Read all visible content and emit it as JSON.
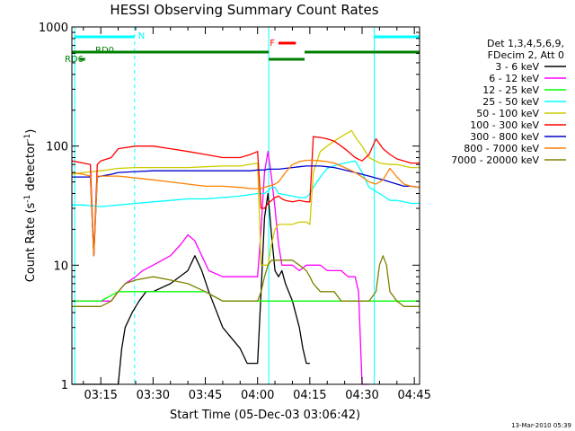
{
  "chart_data": {
    "type": "line",
    "title": "HESSI Observing Summary Count Rates",
    "xlabel": "Start Time (05-Dec-03 03:06:42)",
    "ylabel": "Count Rate (s⁻¹ detector⁻¹)",
    "ylabel_parts": {
      "main": "Count Rate (s",
      "sup1": "-1",
      "mid": " detector",
      "sup2": "-1",
      "end": ")"
    },
    "x_units": "minutes after 03:00 UT",
    "xlim": [
      6.7,
      106.5
    ],
    "ylim": [
      1,
      1000
    ],
    "yscale": "log",
    "x_ticks": [
      {
        "x": 15,
        "label": "03:15"
      },
      {
        "x": 30,
        "label": "03:30"
      },
      {
        "x": 45,
        "label": "03:45"
      },
      {
        "x": 60,
        "label": "04:00"
      },
      {
        "x": 75,
        "label": "04:15"
      },
      {
        "x": 90,
        "label": "04:30"
      },
      {
        "x": 105,
        "label": "04:45"
      }
    ],
    "y_ticks": [
      {
        "y": 1,
        "label": "1"
      },
      {
        "y": 10,
        "label": "10"
      },
      {
        "y": 100,
        "label": "100"
      },
      {
        "y": 1000,
        "label": "1000"
      }
    ],
    "legend": {
      "placement": "right",
      "header_lines": [
        "Det 1,3,4,5,6,9,",
        "FDecim 2, Att 0"
      ]
    },
    "series": [
      {
        "name": "3 - 6 keV",
        "color": "#000000",
        "x": [
          6.7,
          20,
          21,
          22,
          24,
          26,
          28,
          30,
          35,
          40,
          42,
          44,
          46,
          50,
          55,
          57,
          60,
          61,
          62,
          63,
          64,
          65,
          66,
          67,
          68,
          70,
          72,
          73,
          74,
          75
        ],
        "y": [
          1,
          1,
          2,
          3,
          4,
          5,
          6,
          6,
          7,
          9,
          12,
          9,
          6,
          3,
          2,
          1.5,
          1.5,
          6,
          25,
          40,
          18,
          9,
          8,
          9,
          7,
          5,
          3,
          2,
          1.5,
          1.5
        ]
      },
      {
        "name": "6 - 12 keV",
        "color": "#ff00ff",
        "x": [
          6.7,
          18,
          20,
          22,
          25,
          27,
          30,
          35,
          38,
          40,
          42,
          44,
          46,
          50,
          55,
          58,
          60,
          61,
          62,
          63,
          64,
          65,
          66,
          67,
          68,
          70,
          72,
          74,
          75,
          78,
          80,
          82,
          84,
          86,
          88,
          89,
          90,
          91,
          92
        ],
        "y": [
          5,
          5,
          6,
          7,
          8,
          9,
          10,
          12,
          15,
          18,
          16,
          12,
          9,
          8,
          8,
          8,
          8,
          20,
          60,
          90,
          55,
          30,
          15,
          10,
          10,
          10,
          9,
          10,
          10,
          10,
          9,
          9,
          9,
          8,
          8,
          6,
          1,
          1,
          1
        ]
      },
      {
        "name": "12 - 25 keV",
        "color": "#00ff00",
        "x": [
          6.7,
          15,
          20,
          25,
          30,
          35,
          40,
          45,
          50,
          55,
          60,
          61,
          62,
          63,
          64,
          65,
          66,
          68,
          70,
          72,
          74,
          75,
          76,
          80,
          85,
          90,
          95,
          100,
          106.5
        ],
        "y": [
          5,
          5,
          6,
          6,
          6,
          6,
          6,
          6,
          5,
          5,
          5,
          5,
          5,
          5,
          5,
          5,
          5,
          5,
          5,
          5,
          5,
          5,
          5,
          5,
          5,
          5,
          5,
          5,
          5
        ]
      },
      {
        "name": "25 - 50 keV",
        "color": "#00ffff",
        "x": [
          6.7,
          10,
          15,
          20,
          25,
          30,
          35,
          40,
          45,
          50,
          55,
          60,
          61,
          62,
          63,
          64,
          65,
          66,
          70,
          72,
          74,
          75,
          76,
          78,
          80,
          83,
          85,
          88,
          90,
          92,
          95,
          98,
          100,
          102,
          104,
          106.5
        ],
        "y": [
          32,
          32,
          31,
          32,
          33,
          34,
          35,
          36,
          36,
          37,
          38,
          40,
          40,
          40,
          42,
          45,
          45,
          40,
          38,
          37,
          37,
          40,
          45,
          55,
          65,
          70,
          72,
          75,
          60,
          45,
          40,
          35,
          35,
          34,
          33,
          33
        ]
      },
      {
        "name": "50 - 100 keV",
        "color": "#cccc00",
        "x": [
          6.7,
          10,
          15,
          20,
          25,
          30,
          35,
          40,
          45,
          50,
          55,
          60,
          61,
          62,
          63,
          64,
          65,
          66,
          67,
          68,
          70,
          72,
          74,
          75,
          76,
          78,
          80,
          82,
          84,
          86,
          87,
          88,
          90,
          92,
          95,
          98,
          100,
          102,
          104,
          106.5
        ],
        "y": [
          58,
          60,
          62,
          65,
          66,
          66,
          66,
          66,
          67,
          68,
          68,
          72,
          10,
          10,
          10,
          15,
          20,
          22,
          22,
          22,
          22,
          23,
          23,
          22,
          60,
          90,
          100,
          110,
          120,
          130,
          135,
          120,
          100,
          80,
          72,
          70,
          70,
          68,
          66,
          66
        ]
      },
      {
        "name": "100 - 300 keV",
        "color": "#ff0000",
        "x": [
          6.7,
          10,
          12,
          13,
          14,
          15,
          18,
          20,
          25,
          30,
          35,
          40,
          45,
          50,
          55,
          58,
          60,
          61,
          62,
          63,
          64,
          65,
          66,
          67,
          68,
          70,
          72,
          74,
          75,
          76,
          78,
          80,
          82,
          84,
          86,
          88,
          90,
          92,
          94,
          96,
          98,
          100,
          102,
          104,
          106.5
        ],
        "y": [
          75,
          72,
          70,
          12,
          70,
          75,
          80,
          95,
          100,
          100,
          95,
          90,
          85,
          80,
          80,
          85,
          90,
          30,
          30,
          33,
          35,
          37,
          38,
          36,
          35,
          34,
          35,
          34,
          34,
          120,
          118,
          115,
          110,
          100,
          90,
          80,
          75,
          85,
          115,
          95,
          85,
          78,
          75,
          72,
          72
        ]
      },
      {
        "name": "300 - 800 keV",
        "color": "#0000cc",
        "x": [
          6.7,
          10,
          12,
          13,
          14,
          15,
          18,
          20,
          25,
          30,
          35,
          40,
          45,
          50,
          55,
          58,
          60,
          61,
          62,
          63,
          64,
          65,
          66,
          68,
          70,
          72,
          74,
          75,
          76,
          78,
          80,
          82,
          84,
          86,
          88,
          90,
          92,
          94,
          96,
          98,
          100,
          102,
          104,
          106.5
        ],
        "y": [
          55,
          55,
          55,
          12,
          55,
          56,
          58,
          60,
          61,
          62,
          62,
          62,
          62,
          62,
          62,
          62,
          63,
          63,
          63,
          64,
          64,
          64,
          64,
          65,
          66,
          67,
          68,
          68,
          68,
          68,
          67,
          66,
          64,
          62,
          60,
          58,
          56,
          54,
          52,
          50,
          48,
          46,
          46,
          45
        ]
      },
      {
        "name": "800 - 7000 keV",
        "color": "#ff8000",
        "x": [
          6.7,
          10,
          12,
          13,
          14,
          15,
          18,
          20,
          25,
          30,
          35,
          40,
          45,
          50,
          55,
          58,
          60,
          61,
          62,
          63,
          64,
          65,
          66,
          68,
          70,
          72,
          74,
          75,
          76,
          78,
          80,
          82,
          84,
          86,
          88,
          90,
          92,
          94,
          96,
          98,
          100,
          102,
          104,
          106.5
        ],
        "y": [
          60,
          58,
          56,
          12,
          56,
          56,
          56,
          56,
          54,
          52,
          50,
          48,
          46,
          46,
          45,
          44,
          44,
          44,
          45,
          46,
          47,
          48,
          50,
          60,
          70,
          74,
          76,
          76,
          76,
          75,
          74,
          72,
          68,
          64,
          60,
          55,
          50,
          48,
          52,
          65,
          55,
          48,
          46,
          45
        ]
      },
      {
        "name": "7000 - 20000 keV",
        "color": "#808000",
        "x": [
          6.7,
          10,
          15,
          18,
          20,
          22,
          25,
          30,
          35,
          40,
          45,
          50,
          55,
          58,
          60,
          61,
          62,
          63,
          64,
          65,
          66,
          68,
          70,
          72,
          74,
          75,
          76,
          78,
          80,
          82,
          84,
          86,
          88,
          90,
          92,
          94,
          95,
          96,
          97,
          98,
          100,
          102,
          104,
          106.5
        ],
        "y": [
          4.5,
          4.5,
          4.5,
          5,
          6,
          7,
          7.5,
          8,
          7.5,
          7,
          6,
          5,
          5,
          5,
          5,
          6,
          8,
          10,
          11,
          11,
          11,
          11,
          11,
          10,
          9,
          8,
          7,
          6,
          6,
          6,
          5,
          5,
          5,
          5,
          5,
          6,
          10,
          12,
          10,
          6,
          5,
          4.5,
          4.5,
          4.5
        ]
      }
    ],
    "annotations": [
      {
        "label": "N",
        "color": "#00ffff",
        "x_start": 7.5,
        "x_end": 106.5,
        "segments": [
          [
            7.5,
            24.7
          ],
          [
            93.5,
            106.5
          ]
        ]
      },
      {
        "label": "RD0",
        "color": "#008000",
        "x_start": 8.5,
        "x_end": 105,
        "segments": [
          [
            6.7,
            63.2
          ],
          [
            73.5,
            106.5
          ]
        ]
      },
      {
        "label": "RD6",
        "color": "#008000",
        "x_start": 9,
        "x_end": 10.5,
        "segments": [
          [
            9.0,
            10.5
          ]
        ]
      },
      {
        "label": "F",
        "color": "#ff0000",
        "x_start": 66,
        "x_end": 71,
        "segments": [
          [
            66.0,
            71.0
          ]
        ]
      }
    ],
    "dashed_vertical_lines_x": [
      24.7,
      106.5
    ],
    "solid_vertical_lines_x": [
      7.5,
      63.2,
      93.5
    ]
  },
  "footer": {
    "timestamp": "13-Mar-2010 05:39"
  }
}
